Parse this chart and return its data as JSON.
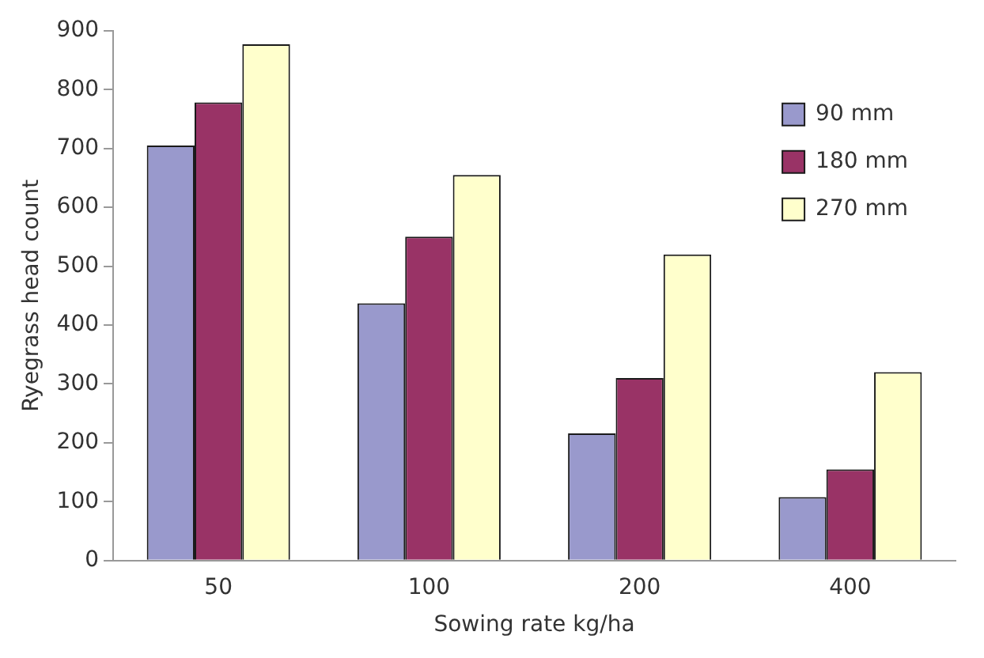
{
  "chart_data": {
    "type": "bar",
    "xlabel": "Sowing rate kg/ha",
    "ylabel": "Ryegrass head count",
    "categories": [
      "50",
      "100",
      "200",
      "400"
    ],
    "series": [
      {
        "name": "90 mm",
        "color": "#9999cc",
        "values": [
          705,
          437,
          216,
          108
        ]
      },
      {
        "name": "180 mm",
        "color": "#993366",
        "values": [
          778,
          550,
          310,
          155
        ]
      },
      {
        "name": "270 mm",
        "color": "#ffffcc",
        "values": [
          877,
          655,
          520,
          320
        ]
      }
    ],
    "ylim": [
      0,
      900
    ],
    "yticks": [
      0,
      100,
      200,
      300,
      400,
      500,
      600,
      700,
      800,
      900
    ],
    "grid": false,
    "legend": "top right"
  }
}
